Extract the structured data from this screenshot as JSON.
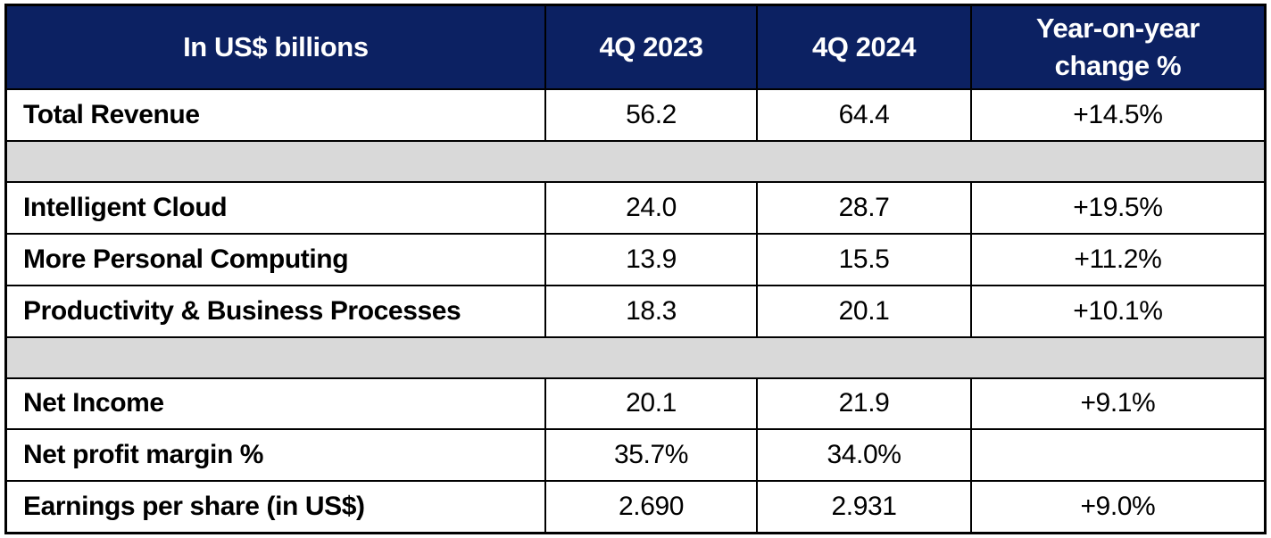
{
  "colors": {
    "header_bg": "#0c2162",
    "header_text": "#ffffff",
    "spacer_bg": "#d9d9d9",
    "border": "#000000",
    "row_bg": "#ffffff",
    "body_text": "#000000"
  },
  "chart_data": {
    "type": "table",
    "title": "In US$ billions",
    "columns": [
      "In US$ billions",
      "4Q 2023",
      "4Q 2024",
      "Year-on-year change %"
    ],
    "header": {
      "col0": "In US$ billions",
      "col1": "4Q 2023",
      "col2": "4Q 2024",
      "col3": "Year-on-year change %"
    },
    "rows": [
      {
        "type": "data",
        "label": "Total Revenue",
        "values": [
          "56.2",
          "64.4",
          "+14.5%"
        ]
      },
      {
        "type": "spacer"
      },
      {
        "type": "data",
        "label": "Intelligent Cloud",
        "values": [
          "24.0",
          "28.7",
          "+19.5%"
        ]
      },
      {
        "type": "data",
        "label": "More Personal Computing",
        "values": [
          "13.9",
          "15.5",
          "+11.2%"
        ]
      },
      {
        "type": "data",
        "label": "Productivity & Business Processes",
        "values": [
          "18.3",
          "20.1",
          "+10.1%"
        ]
      },
      {
        "type": "spacer"
      },
      {
        "type": "data",
        "label": "Net Income",
        "values": [
          "20.1",
          "21.9",
          "+9.1%"
        ]
      },
      {
        "type": "data",
        "label": "Net profit margin %",
        "values": [
          "35.7%",
          "34.0%",
          ""
        ],
        "last_cell_gray": true
      },
      {
        "type": "data",
        "label": "Earnings per share (in US$)",
        "values": [
          "2.690",
          "2.931",
          "+9.0%"
        ]
      }
    ],
    "layout": {
      "grid": true,
      "spacer_rows": [
        1,
        5
      ],
      "empty_gray_cell": "row 7, col 3"
    }
  }
}
